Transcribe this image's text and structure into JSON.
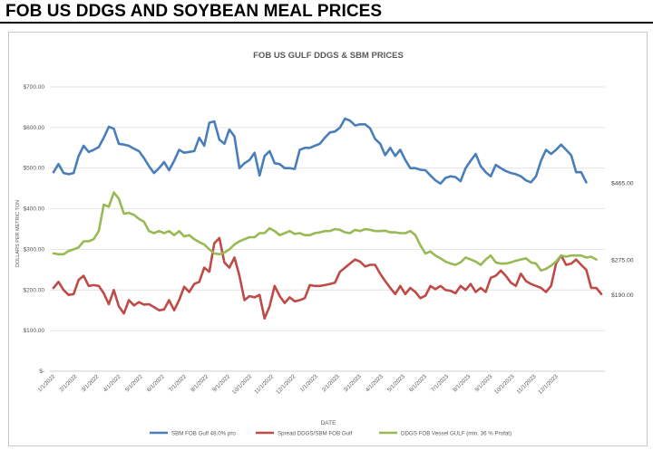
{
  "page": {
    "title": "FOB US DDGS AND SOYBEAN MEAL PRICES"
  },
  "colors": {
    "sbm": "#4a7ebb",
    "spread": "#be4b48",
    "ddgs": "#98b954",
    "grid": "#d9d9d9",
    "axis_text": "#595959"
  },
  "chart_data": {
    "type": "line",
    "title": "FOB US GULF DDGS & SBM PRICES",
    "xlabel": "DATE",
    "ylabel": "DOLLARS PER METRIC TON",
    "ylim": [
      0,
      700
    ],
    "y_ticks": [
      0,
      100,
      200,
      300,
      400,
      500,
      600,
      700
    ],
    "y_tick_labels": [
      "$-",
      "$100.00",
      "$200.00",
      "$300.00",
      "$400.00",
      "$500.00",
      "$600.00",
      "$700.00"
    ],
    "grid": true,
    "legend_position": "bottom",
    "x_tick_labels": [
      "1/1/2022",
      "2/1/2022",
      "3/1/2022",
      "4/1/2022",
      "5/1/2022",
      "6/1/2022",
      "7/1/2022",
      "8/1/2022",
      "9/1/2022",
      "10/1/2022",
      "11/1/2022",
      "12/1/2022",
      "1/1/2023",
      "2/1/2023",
      "3/1/2023",
      "4/1/2023",
      "5/1/2023",
      "6/1/2023",
      "7/1/2023",
      "8/1/2023",
      "9/1/2023",
      "10/1/2023",
      "11/1/2023",
      "12/1/2023"
    ],
    "x_start": "1/1/2022",
    "x_step_weeks": 1,
    "series": [
      {
        "name": "SBM FOB Gulf 48.0% pro",
        "color_key": "sbm",
        "end_label": "$465.00",
        "values": [
          490,
          510,
          488,
          485,
          488,
          530,
          555,
          540,
          545,
          552,
          575,
          602,
          597,
          560,
          558,
          555,
          548,
          542,
          525,
          505,
          488,
          500,
          515,
          495,
          518,
          545,
          538,
          540,
          542,
          575,
          555,
          612,
          615,
          570,
          560,
          595,
          578,
          500,
          512,
          520,
          538,
          482,
          530,
          542,
          512,
          510,
          500,
          500,
          498,
          545,
          550,
          550,
          555,
          560,
          575,
          588,
          590,
          600,
          622,
          617,
          605,
          608,
          608,
          598,
          572,
          560,
          532,
          550,
          530,
          545,
          520,
          500,
          500,
          496,
          495,
          482,
          470,
          462,
          476,
          480,
          478,
          468,
          500,
          518,
          535,
          505,
          490,
          480,
          508,
          500,
          493,
          488,
          485,
          480,
          470,
          465,
          480,
          518,
          545,
          535,
          545,
          558,
          545,
          532,
          490,
          490,
          465
        ]
      },
      {
        "name": "Spread DDGS/SBM FOB Gulf",
        "color_key": "spread",
        "end_label": "$190.00",
        "values": [
          205,
          220,
          200,
          188,
          190,
          225,
          235,
          210,
          212,
          210,
          192,
          165,
          200,
          160,
          142,
          175,
          162,
          170,
          164,
          165,
          158,
          150,
          152,
          175,
          150,
          175,
          208,
          195,
          215,
          220,
          255,
          245,
          315,
          328,
          268,
          255,
          280,
          235,
          175,
          185,
          182,
          188,
          130,
          160,
          210,
          185,
          168,
          182,
          172,
          175,
          180,
          212,
          210,
          210,
          212,
          215,
          218,
          245,
          255,
          265,
          275,
          270,
          258,
          262,
          262,
          240,
          222,
          205,
          190,
          210,
          190,
          205,
          195,
          180,
          186,
          210,
          202,
          210,
          200,
          198,
          192,
          210,
          200,
          215,
          195,
          205,
          195,
          230,
          235,
          248,
          235,
          218,
          210,
          240,
          222,
          215,
          210,
          205,
          195,
          210,
          265,
          285,
          262,
          265,
          275,
          262,
          250,
          205,
          205,
          190
        ]
      },
      {
        "name": "DDGS FOB Vessel GULF  (min. 36 % Profat)",
        "color_key": "ddgs",
        "end_label": "$275.00",
        "values": [
          290,
          288,
          288,
          296,
          300,
          305,
          320,
          320,
          325,
          345,
          410,
          405,
          440,
          425,
          388,
          390,
          385,
          375,
          368,
          345,
          340,
          345,
          340,
          345,
          335,
          345,
          332,
          335,
          325,
          318,
          312,
          300,
          290,
          288,
          292,
          300,
          312,
          320,
          325,
          330,
          330,
          340,
          340,
          352,
          345,
          335,
          340,
          345,
          338,
          340,
          335,
          335,
          340,
          342,
          345,
          345,
          350,
          348,
          342,
          340,
          348,
          345,
          350,
          348,
          345,
          345,
          346,
          342,
          342,
          340,
          340,
          345,
          335,
          310,
          290,
          295,
          285,
          278,
          270,
          265,
          262,
          268,
          280,
          275,
          270,
          262,
          275,
          285,
          268,
          265,
          265,
          268,
          272,
          275,
          278,
          268,
          265,
          248,
          252,
          260,
          270,
          285,
          282,
          285,
          285,
          285,
          280,
          282,
          275
        ]
      }
    ]
  }
}
